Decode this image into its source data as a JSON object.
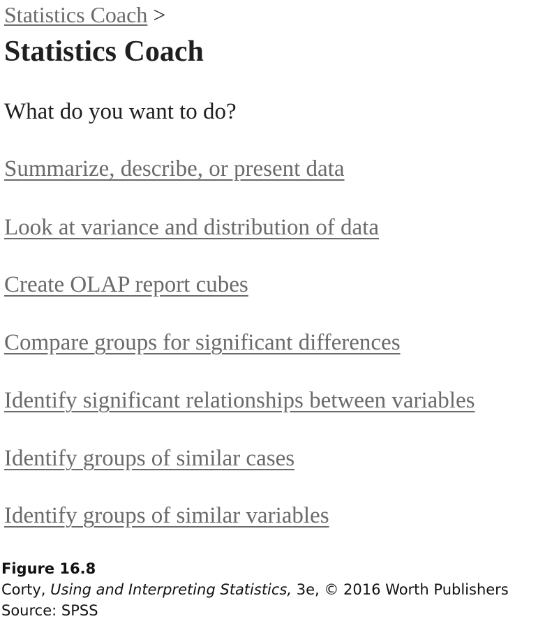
{
  "breadcrumb": {
    "link": "Statistics Coach",
    "separator": ">"
  },
  "title": "Statistics Coach",
  "question": "What do you want to do?",
  "options": [
    "Summarize, describe, or present data",
    "Look at variance and distribution of data",
    "Create OLAP report cubes",
    "Compare groups for significant differences",
    "Identify significant relationships between variables",
    "Identify groups of similar cases",
    "Identify groups of similar variables"
  ],
  "caption": {
    "figure": "Figure 16.8",
    "author": "Corty,",
    "book_title": "Using and Interpreting Statistics,",
    "rest": "3e, © 2016 Worth Publishers",
    "source": "Source: SPSS"
  },
  "colors": {
    "link": "#6a6a6a",
    "text": "#1f1f1f"
  }
}
